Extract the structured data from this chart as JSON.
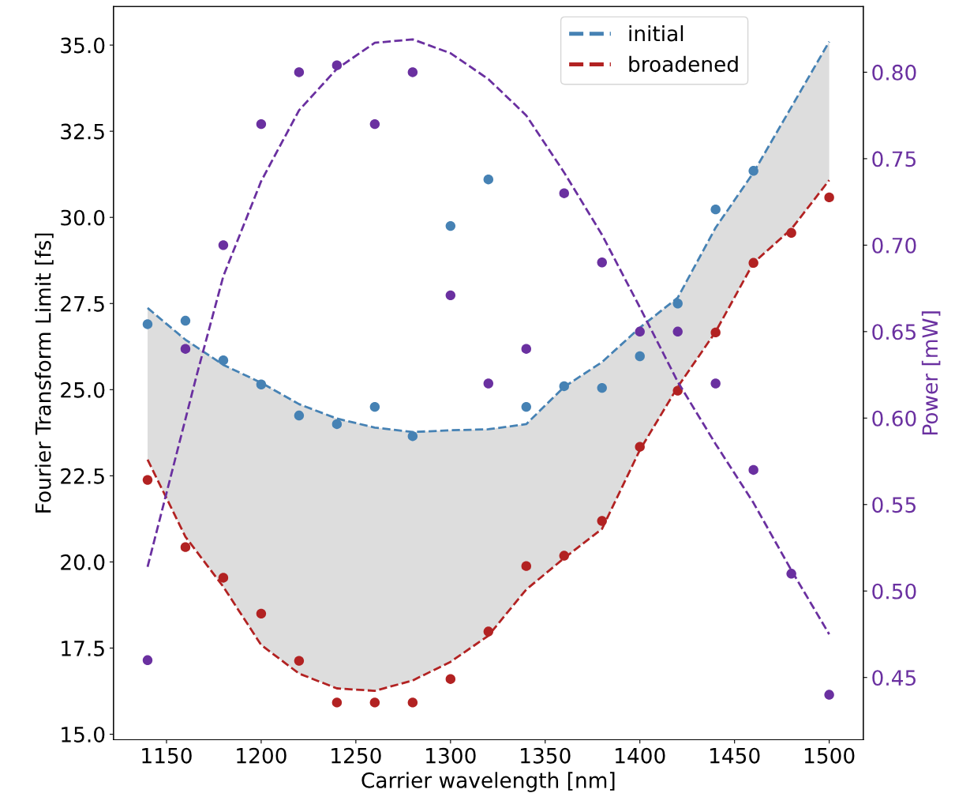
{
  "chart_data": {
    "type": "scatter",
    "xlabel": "Carrier wavelength [nm]",
    "ylabel": "Fourier Transform Limit [fs]",
    "y2label": "Power [mW]",
    "xlim": [
      1122,
      1518
    ],
    "xticks": [
      1150,
      1200,
      1250,
      1300,
      1350,
      1400,
      1450,
      1500
    ],
    "ylim": [
      14.84,
      36.12
    ],
    "yticks": [
      {
        "value": 15,
        "label": "15.0"
      },
      {
        "value": 17.5,
        "label": "17.5"
      },
      {
        "value": 20,
        "label": "20.0"
      },
      {
        "value": 22.5,
        "label": "22.5"
      },
      {
        "value": 25,
        "label": "25.0"
      },
      {
        "value": 27.5,
        "label": "27.5"
      },
      {
        "value": 30,
        "label": "30.0"
      },
      {
        "value": 32.5,
        "label": "32.5"
      },
      {
        "value": 35,
        "label": "35.0"
      }
    ],
    "y2lim": [
      0.414,
      0.838
    ],
    "y2ticks": [
      {
        "value": 0.45,
        "label": "0.45"
      },
      {
        "value": 0.5,
        "label": "0.50"
      },
      {
        "value": 0.55,
        "label": "0.55"
      },
      {
        "value": 0.6,
        "label": "0.60"
      },
      {
        "value": 0.65,
        "label": "0.65"
      },
      {
        "value": 0.7,
        "label": "0.70"
      },
      {
        "value": 0.75,
        "label": "0.75"
      },
      {
        "value": 0.8,
        "label": "0.80"
      }
    ],
    "legend": "top right",
    "grid": false,
    "series": [
      {
        "type": "line",
        "name": "initial",
        "color": "#4682b4",
        "line_style": "dashed",
        "x": [
          1140,
          1160,
          1180,
          1200,
          1220,
          1240,
          1260,
          1280,
          1300,
          1320,
          1340,
          1360,
          1380,
          1400,
          1420,
          1440,
          1460,
          1480,
          1500
        ],
        "values": [
          27.37,
          26.45,
          25.72,
          25.2,
          24.58,
          24.16,
          23.9,
          23.77,
          23.82,
          23.85,
          24.0,
          25.08,
          25.8,
          26.8,
          27.67,
          29.7,
          31.3,
          33.2,
          35.1
        ],
        "upper": [
          27.37,
          26.45,
          25.72,
          25.2,
          24.58,
          24.16,
          23.9,
          23.77,
          23.82,
          23.85,
          24.0,
          25.08,
          25.8,
          26.8,
          27.67,
          29.7,
          31.3,
          33.2,
          35.1
        ],
        "lower": [
          22.97,
          20.73,
          19.28,
          17.59,
          16.76,
          16.33,
          16.26,
          16.56,
          17.1,
          17.86,
          19.2,
          20.11,
          20.96,
          23.25,
          25.08,
          26.68,
          28.68,
          29.66,
          31.08
        ]
      },
      {
        "type": "line",
        "name": "broadened",
        "color": "#b22222",
        "line_style": "dashed",
        "x": [
          1140,
          1160,
          1180,
          1200,
          1220,
          1240,
          1260,
          1280,
          1300,
          1320,
          1340,
          1360,
          1380,
          1400,
          1420,
          1440,
          1460,
          1480,
          1500
        ],
        "values": [
          22.97,
          20.73,
          19.28,
          17.59,
          16.76,
          16.33,
          16.26,
          16.56,
          17.1,
          17.86,
          19.2,
          20.11,
          20.96,
          23.25,
          25.08,
          26.68,
          28.68,
          29.66,
          31.08
        ]
      },
      {
        "type": "line",
        "axis": "y2",
        "color": "#6a30a0",
        "line_style": "dashed",
        "x": [
          1140,
          1166,
          1180,
          1200,
          1220,
          1240,
          1260,
          1280,
          1300,
          1320,
          1340,
          1360,
          1380,
          1400,
          1420,
          1440,
          1460,
          1480,
          1500
        ],
        "values": [
          0.514,
          0.625,
          0.682,
          0.737,
          0.778,
          0.802,
          0.817,
          0.819,
          0.811,
          0.796,
          0.775,
          0.742,
          0.706,
          0.664,
          0.621,
          0.585,
          0.551,
          0.512,
          0.475
        ]
      },
      {
        "color": "#4682b4",
        "marker": "circle",
        "x": [
          1140,
          1160,
          1180,
          1200,
          1220,
          1240,
          1260,
          1280,
          1340,
          1360,
          1380,
          1400,
          1420,
          1440,
          1460
        ],
        "values": [
          26.9,
          27.0,
          25.85,
          25.15,
          24.25,
          24.0,
          24.5,
          23.65,
          24.5,
          25.1,
          25.05,
          25.97,
          27.5,
          30.23,
          31.35
        ]
      },
      {
        "color": "#4682b4",
        "marker": "circle",
        "x": [
          1300,
          1320
        ],
        "values": [
          29.75,
          31.1
        ]
      },
      {
        "color": "#b22222",
        "marker": "circle",
        "x": [
          1140,
          1160,
          1180,
          1200,
          1220,
          1240,
          1260,
          1280,
          1300,
          1320,
          1340,
          1360,
          1380,
          1400,
          1420,
          1440,
          1460,
          1480,
          1500
        ],
        "values": [
          22.38,
          20.43,
          19.54,
          18.5,
          17.13,
          15.92,
          15.92,
          15.92,
          16.6,
          17.98,
          19.88,
          20.18,
          21.19,
          23.34,
          24.97,
          26.66,
          28.68,
          29.55,
          30.58
        ]
      },
      {
        "axis": "y2",
        "color": "#6a30a0",
        "marker": "circle",
        "x": [
          1140,
          1160,
          1180,
          1200,
          1220,
          1240,
          1260,
          1280,
          1360,
          1380,
          1400,
          1420,
          1440,
          1460,
          1480,
          1500
        ],
        "values": [
          0.46,
          0.64,
          0.7,
          0.77,
          0.8,
          0.804,
          0.77,
          0.8,
          0.73,
          0.69,
          0.65,
          0.65,
          0.62,
          0.57,
          0.51,
          0.44
        ]
      },
      {
        "axis": "y2",
        "color": "#6a30a0",
        "marker": "circle",
        "x": [
          1300,
          1320,
          1340
        ],
        "values": [
          0.671,
          0.62,
          0.64
        ]
      }
    ]
  }
}
